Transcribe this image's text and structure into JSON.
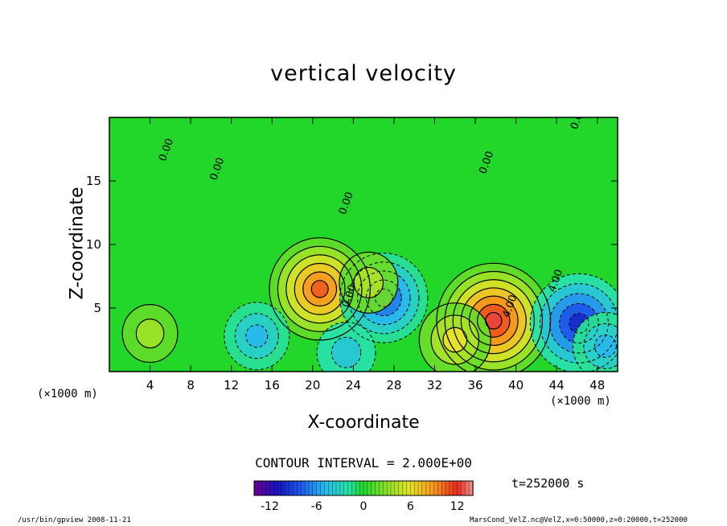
{
  "chart_data": {
    "type": "heatmap",
    "title": "vertical velocity",
    "xlabel": "X-coordinate",
    "ylabel": "Z-coordinate",
    "x_unit_left": "(×1000 m)",
    "x_unit_right": "(×1000 m)",
    "xlim": [
      0,
      50
    ],
    "ylim": [
      0,
      20
    ],
    "xticks": [
      "4",
      "8",
      "12",
      "16",
      "20",
      "24",
      "28",
      "32",
      "36",
      "40",
      "44",
      "48"
    ],
    "yticks": [
      "5",
      "10",
      "15"
    ],
    "contour_interval_text": "CONTOUR INTERVAL = 2.000E+00",
    "contour_labels": [
      "0.00",
      "0.00",
      "0.00",
      "0.00",
      "0.00",
      "0.00",
      "4.00",
      "4.00"
    ],
    "colorbar": {
      "range": [
        -14,
        14
      ],
      "ticks": [
        "-12",
        "-6",
        "0",
        "6",
        "12"
      ]
    },
    "time_label": "t=252000 s",
    "features": [
      {
        "x": 20.7,
        "z": 6.5,
        "value": 10.5
      },
      {
        "x": 37.8,
        "z": 4.0,
        "value": 12.5
      },
      {
        "x": 27.0,
        "z": 5.8,
        "value": -8.5
      },
      {
        "x": 46.2,
        "z": 3.8,
        "value": -10.0
      },
      {
        "x": 14.5,
        "z": 2.8,
        "value": -5.0
      },
      {
        "x": 48.8,
        "z": 2.0,
        "value": -5.0
      },
      {
        "x": 23.3,
        "z": 1.5,
        "value": -4.0
      },
      {
        "x": 4.0,
        "z": 3.0,
        "value": 3.5
      },
      {
        "x": 34.0,
        "z": 2.5,
        "value": 6.0
      },
      {
        "x": 25.5,
        "z": 7.0,
        "value": 4.0
      }
    ]
  },
  "footer": {
    "left": "/usr/bin/gpview  2008-11-21",
    "right": "MarsCond_VelZ.nc@VelZ,x=0:50000,z=0:20000,t=252000"
  },
  "colors": {
    "background_field": "#22d62a",
    "warm": "#e8281e",
    "cold": "#1e64e6"
  }
}
